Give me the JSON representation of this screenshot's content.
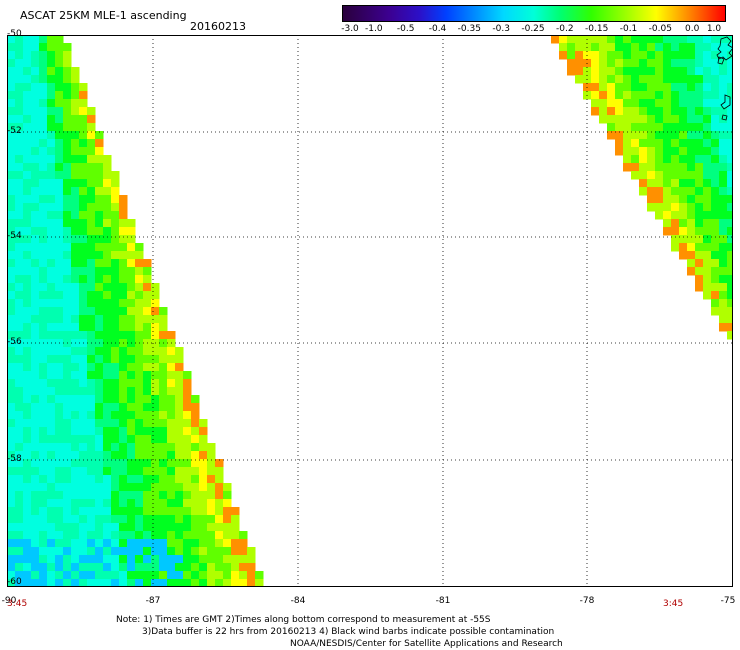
{
  "header": {
    "title": "ASCAT 25KM MLE-1 ascending",
    "date": "20160213"
  },
  "colorbar": {
    "tick_labels": [
      "-3.0",
      "-1.0",
      "-0.5",
      "-0.4",
      "-0.35",
      "-0.3",
      "-0.25",
      "-0.2",
      "-0.15",
      "-0.1",
      "-0.05",
      "0.0",
      "1.0"
    ],
    "colors": [
      "#2a003c",
      "#3c0090",
      "#2c10c8",
      "#0040ff",
      "#0090ff",
      "#00d8ff",
      "#00ffd8",
      "#00ff70",
      "#30ff00",
      "#a8ff00",
      "#ffff00",
      "#ff9000",
      "#ff0000"
    ]
  },
  "map": {
    "lat_labels": [
      "-50",
      "-52",
      "-54",
      "-56",
      "-58",
      "-60"
    ],
    "lon_labels": [
      "-90",
      "-87",
      "-84",
      "-81",
      "-78",
      "-75"
    ],
    "time_left": "3:45",
    "time_right": "3:45",
    "swath_colors": {
      "cyan": "#00ffe0",
      "aqua": "#00ffb0",
      "mint": "#00ff80",
      "green": "#00ff20",
      "lime": "#60ff00",
      "yellowgreen": "#b0ff00",
      "yellow": "#ffff00",
      "orange": "#ff9000",
      "blue": "#00c8ff"
    }
  },
  "notes": {
    "line1": "Note: 1) Times are GMT 2)Times along bottom correspond to measurement at -55S",
    "line2": "3)Data buffer is 22 hrs from 20160213 4) Black wind barbs indicate possible contamination",
    "line3": "NOAA/NESDIS/Center for Satellite Applications and Research"
  }
}
